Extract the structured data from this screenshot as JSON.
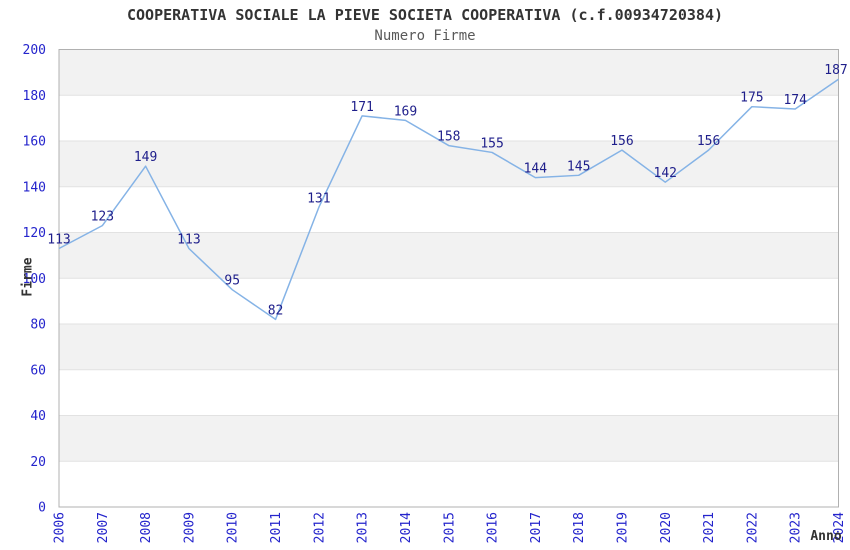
{
  "chart_data": {
    "type": "line",
    "title": "COOPERATIVA SOCIALE LA PIEVE SOCIETA COOPERATIVA (c.f.00934720384)",
    "subtitle": "Numero Firme",
    "xlabel": "Anno",
    "ylabel": "Firme",
    "categories": [
      "2006",
      "2007",
      "2008",
      "2009",
      "2010",
      "2011",
      "2012",
      "2013",
      "2014",
      "2015",
      "2016",
      "2017",
      "2018",
      "2019",
      "2020",
      "2021",
      "2022",
      "2023",
      "2024"
    ],
    "values": [
      113,
      123,
      149,
      113,
      95,
      82,
      131,
      171,
      169,
      158,
      155,
      144,
      145,
      156,
      142,
      156,
      175,
      174,
      187
    ],
    "ylim": [
      0,
      200
    ],
    "ytick_step": 20,
    "grid": "horizontal-bands",
    "legend": "none",
    "point_labels_visible": true
  },
  "colors": {
    "line": "#85b3e6",
    "point_label": "#1f1f8b",
    "tick_label": "#2424cc",
    "band": "#f2f2f2",
    "gridline": "#e2e2e2",
    "plot_border": "#b0b0b0",
    "title": "#333333",
    "subtitle": "#595959",
    "axis_label": "#333333",
    "background": "#ffffff"
  }
}
